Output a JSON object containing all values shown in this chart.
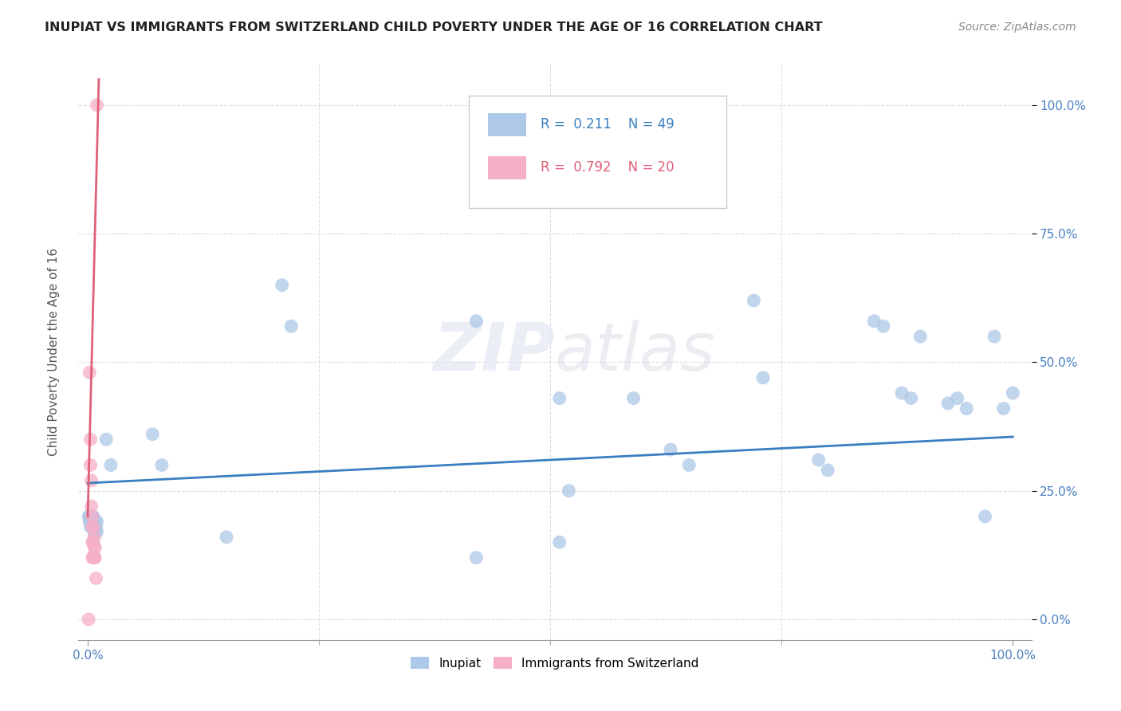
{
  "title": "INUPIAT VS IMMIGRANTS FROM SWITZERLAND CHILD POVERTY UNDER THE AGE OF 16 CORRELATION CHART",
  "source": "Source: ZipAtlas.com",
  "ylabel_label": "Child Poverty Under the Age of 16",
  "legend_label1": "Inupiat",
  "legend_label2": "Immigrants from Switzerland",
  "R1": 0.211,
  "N1": 49,
  "R2": 0.792,
  "N2": 20,
  "color1": "#adc8e8",
  "color2": "#f5afc8",
  "trendline1_color": "#3a7fc1",
  "trendline2_color": "#e0607a",
  "watermark": "ZIPatlas",
  "inupiat_x": [
    0.001,
    0.002,
    0.002,
    0.003,
    0.003,
    0.004,
    0.004,
    0.005,
    0.005,
    0.006,
    0.006,
    0.007,
    0.007,
    0.008,
    0.008,
    0.009,
    0.01,
    0.01,
    0.02,
    0.025,
    0.07,
    0.08,
    0.21,
    0.22,
    0.42,
    0.51,
    0.52,
    0.59,
    0.63,
    0.65,
    0.72,
    0.73,
    0.79,
    0.8,
    0.85,
    0.86,
    0.88,
    0.89,
    0.9,
    0.93,
    0.94,
    0.95,
    0.97,
    0.98,
    0.99,
    1.0,
    0.51,
    0.42,
    0.15
  ],
  "inupiat_y": [
    0.2,
    0.2,
    0.19,
    0.19,
    0.18,
    0.2,
    0.19,
    0.2,
    0.18,
    0.2,
    0.19,
    0.18,
    0.17,
    0.19,
    0.17,
    0.18,
    0.19,
    0.17,
    0.35,
    0.3,
    0.36,
    0.3,
    0.65,
    0.57,
    0.58,
    0.43,
    0.25,
    0.43,
    0.33,
    0.3,
    0.62,
    0.47,
    0.31,
    0.29,
    0.58,
    0.57,
    0.44,
    0.43,
    0.55,
    0.42,
    0.43,
    0.41,
    0.2,
    0.55,
    0.41,
    0.44,
    0.15,
    0.12,
    0.16
  ],
  "swiss_x": [
    0.001,
    0.002,
    0.003,
    0.003,
    0.004,
    0.004,
    0.005,
    0.005,
    0.005,
    0.005,
    0.006,
    0.006,
    0.006,
    0.007,
    0.007,
    0.007,
    0.008,
    0.008,
    0.009,
    0.01
  ],
  "swiss_y": [
    0.0,
    0.48,
    0.35,
    0.3,
    0.27,
    0.22,
    0.2,
    0.18,
    0.15,
    0.12,
    0.18,
    0.15,
    0.12,
    0.16,
    0.14,
    0.12,
    0.14,
    0.12,
    0.08,
    1.0
  ],
  "trendline1_x": [
    0.0,
    1.0
  ],
  "trendline1_y": [
    0.265,
    0.355
  ],
  "trendline2_x": [
    0.0,
    0.012
  ],
  "trendline2_y": [
    0.2,
    1.05
  ],
  "xlim": [
    -0.01,
    1.02
  ],
  "ylim": [
    -0.04,
    1.08
  ],
  "xticks": [
    0.0,
    1.0
  ],
  "xticklabels": [
    "0.0%",
    "100.0%"
  ],
  "yticks": [
    0.0,
    0.25,
    0.5,
    0.75,
    1.0
  ],
  "yticklabels": [
    "0.0%",
    "25.0%",
    "50.0%",
    "75.0%",
    "100.0%"
  ],
  "inner_xticks": [
    0.25,
    0.5,
    0.75
  ],
  "inner_xticklabels": [
    "",
    "",
    ""
  ],
  "background_color": "#ffffff",
  "grid_color": "#dddddd"
}
